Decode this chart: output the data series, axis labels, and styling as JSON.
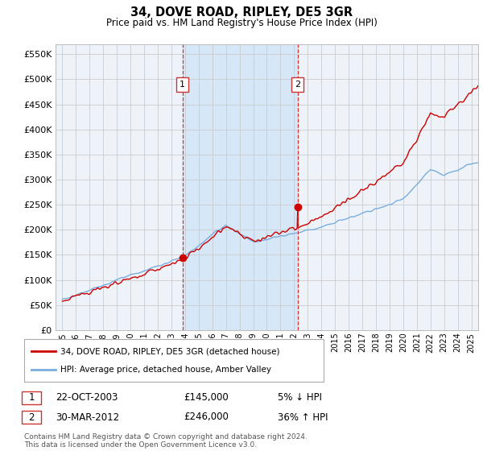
{
  "title": "34, DOVE ROAD, RIPLEY, DE5 3GR",
  "subtitle": "Price paid vs. HM Land Registry's House Price Index (HPI)",
  "ytick_values": [
    0,
    50000,
    100000,
    150000,
    200000,
    250000,
    300000,
    350000,
    400000,
    450000,
    500000,
    550000
  ],
  "ylim": [
    0,
    570000
  ],
  "xlim_start": 1994.5,
  "xlim_end": 2025.5,
  "hpi_color": "#7aaddc",
  "price_color": "#cc0000",
  "grid_color": "#cccccc",
  "background_color": "#ffffff",
  "plot_bg_color": "#eef3fa",
  "shade_color": "#d6e8f7",
  "sale1_x": 2003.81,
  "sale1_y": 145000,
  "sale2_x": 2012.25,
  "sale2_y": 246000,
  "legend_line1": "34, DOVE ROAD, RIPLEY, DE5 3GR (detached house)",
  "legend_line2": "HPI: Average price, detached house, Amber Valley",
  "table_row1_num": "1",
  "table_row1_date": "22-OCT-2003",
  "table_row1_price": "£145,000",
  "table_row1_hpi": "5% ↓ HPI",
  "table_row2_num": "2",
  "table_row2_date": "30-MAR-2012",
  "table_row2_price": "£246,000",
  "table_row2_hpi": "36% ↑ HPI",
  "footnote": "Contains HM Land Registry data © Crown copyright and database right 2024.\nThis data is licensed under the Open Government Licence v3.0.",
  "xtick_years": [
    1995,
    1996,
    1997,
    1998,
    1999,
    2000,
    2001,
    2002,
    2003,
    2004,
    2005,
    2006,
    2007,
    2008,
    2009,
    2010,
    2011,
    2012,
    2013,
    2014,
    2015,
    2016,
    2017,
    2018,
    2019,
    2020,
    2021,
    2022,
    2023,
    2024,
    2025
  ]
}
